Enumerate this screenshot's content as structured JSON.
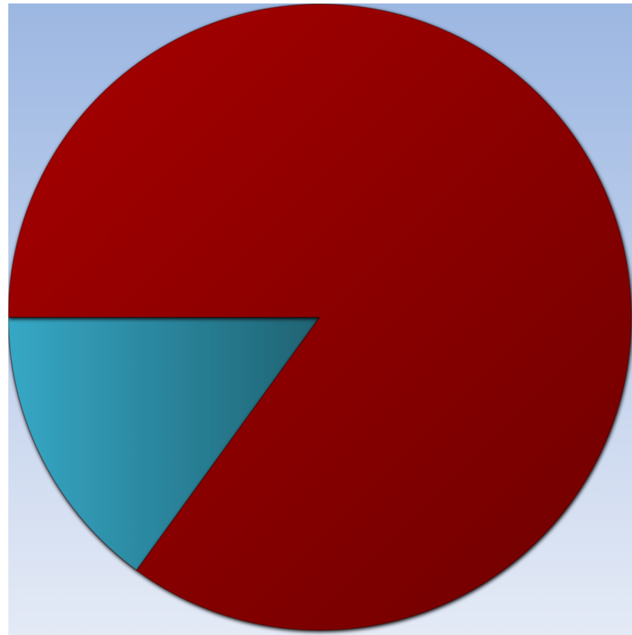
{
  "chart_data": {
    "type": "pie",
    "title": "",
    "start_angle_deg": 180,
    "direction": "counterclockwise",
    "legend": "none",
    "slices": [
      {
        "label": "",
        "value": 15,
        "color": "#2e96b0"
      },
      {
        "label": "",
        "value": 85,
        "color": "#9b0000"
      }
    ]
  },
  "colors": {
    "background_top": "#9cb7e2",
    "background_bottom": "#e4eaf6"
  }
}
